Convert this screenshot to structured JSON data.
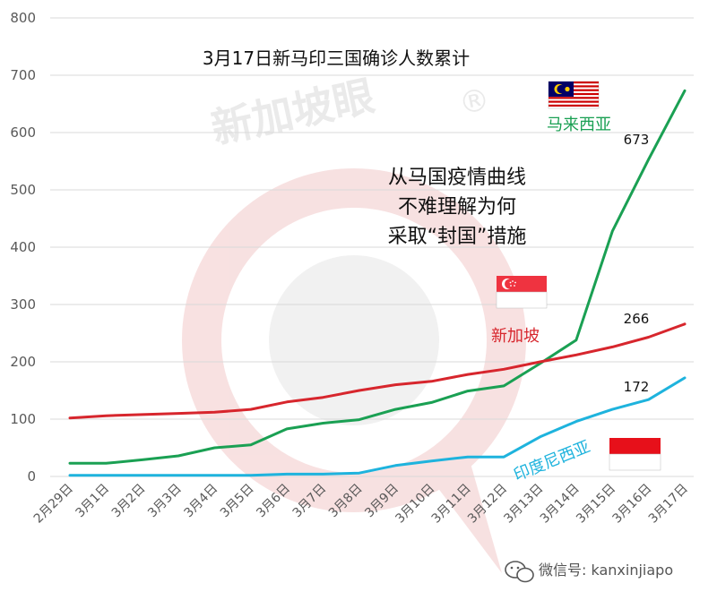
{
  "chart_data": {
    "type": "line",
    "title": "3月17日新马印三国确诊人数累计",
    "annotation": [
      "从马国疫情曲线",
      "不难理解为何",
      "采取“封国”措施"
    ],
    "categories": [
      "2月29日",
      "3月1日",
      "3月2日",
      "3月3日",
      "3月4日",
      "3月5日",
      "3月6日",
      "3月7日",
      "3月8日",
      "3月9日",
      "3月10日",
      "3月11日",
      "3月12日",
      "3月13日",
      "3月14日",
      "3月15日",
      "3月16日",
      "3月17日"
    ],
    "ylim": [
      0,
      800
    ],
    "yticks": [
      0,
      100,
      200,
      300,
      400,
      500,
      600,
      700,
      800
    ],
    "grid": true,
    "series": [
      {
        "name": "马来西亚",
        "color": "#1aa053",
        "flag": "malaysia-flag",
        "end_label": "673",
        "values": [
          23,
          23,
          29,
          36,
          50,
          55,
          83,
          93,
          99,
          117,
          129,
          149,
          158,
          197,
          238,
          428,
          553,
          673
        ]
      },
      {
        "name": "新加坡",
        "color": "#d7262d",
        "flag": "singapore-flag",
        "end_label": "266",
        "values": [
          102,
          106,
          108,
          110,
          112,
          117,
          130,
          138,
          150,
          160,
          166,
          178,
          187,
          200,
          212,
          226,
          243,
          266
        ]
      },
      {
        "name": "印度尼西亚",
        "color": "#1eb3dd",
        "flag": "indonesia-flag",
        "end_label": "172",
        "values": [
          2,
          2,
          2,
          2,
          2,
          2,
          4,
          4,
          6,
          19,
          27,
          34,
          34,
          69,
          96,
          117,
          134,
          172
        ]
      }
    ]
  },
  "watermark": {
    "text": "新加坡眼",
    "mark": "®"
  },
  "footer": {
    "wechat_label": "微信号: kanxinjiapo"
  }
}
